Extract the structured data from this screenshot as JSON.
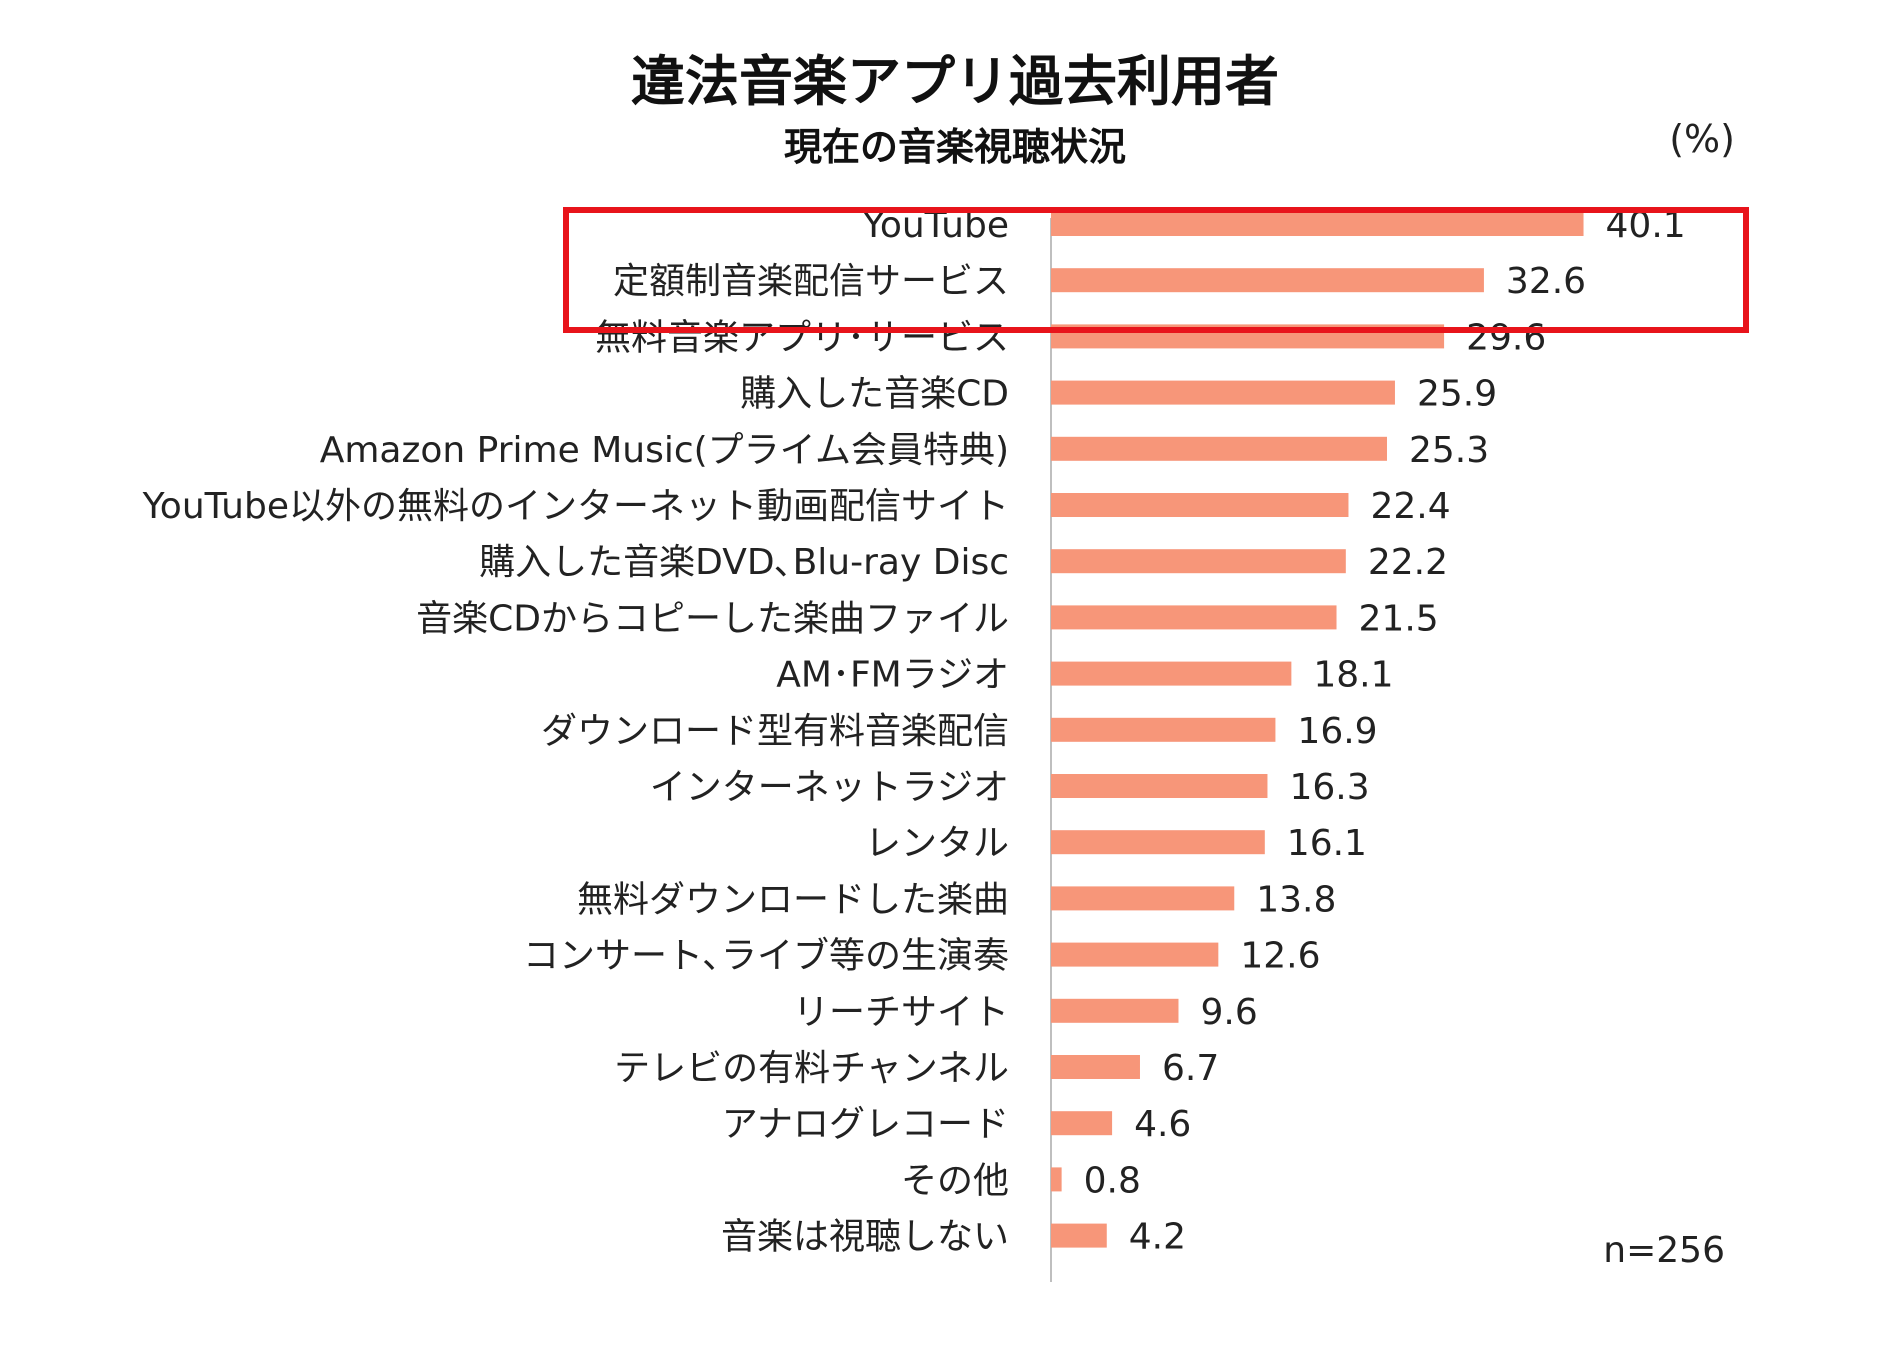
{
  "chart_data": {
    "type": "bar",
    "orientation": "horizontal",
    "title": "違法音楽アプリ過去利用者",
    "subtitle": "現在の音楽視聴状況",
    "unit": "(%)",
    "note": "n=256",
    "categories": [
      "YouTube",
      "定額制音楽配信サービス",
      "無料音楽アプリ･サービス",
      "購入した音楽CD",
      "Amazon Prime Music(プライム会員特典)",
      "YouTube以外の無料のインターネット動画配信サイト",
      "購入した音楽DVD､Blu-ray Disc",
      "音楽CDからコピーした楽曲ファイル",
      "AM･FMラジオ",
      "ダウンロード型有料音楽配信",
      "インターネットラジオ",
      "レンタル",
      "無料ダウンロードした楽曲",
      "コンサート､ライブ等の生演奏",
      "リーチサイト",
      "テレビの有料チャンネル",
      "アナログレコード",
      "その他",
      "音楽は視聴しない"
    ],
    "values": [
      40.1,
      32.6,
      29.6,
      25.9,
      25.3,
      22.4,
      22.2,
      21.5,
      18.1,
      16.9,
      16.3,
      16.1,
      13.8,
      12.6,
      9.6,
      6.7,
      4.6,
      0.8,
      4.2
    ],
    "value_labels": [
      "40.1",
      "32.6",
      "29.6",
      "25.9",
      "25.3",
      "22.4",
      "22.2",
      "21.5",
      "18.1",
      "16.9",
      "16.3",
      "16.1",
      "13.8",
      "12.6",
      "9.6",
      "6.7",
      "4.6",
      "0.8",
      "4.2"
    ],
    "xlim": [
      0,
      50
    ],
    "grid": false,
    "legend": "none",
    "highlighted_categories": [
      "YouTube",
      "定額制音楽配信サービス"
    ],
    "colors": {
      "bar": "#F79679",
      "highlight_box": "#E8141B",
      "axis": "#BFBFBF"
    }
  }
}
